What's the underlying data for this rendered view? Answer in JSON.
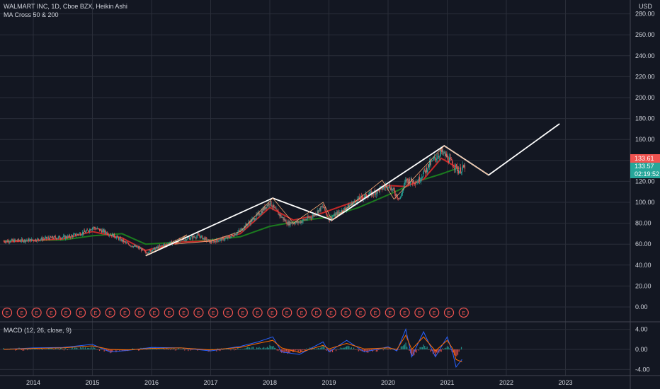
{
  "header": {
    "title": "WALMART INC, 1D, Cboe BZX, Heikin Ashi",
    "indicator": "MA Cross 50 & 200",
    "currency": "USD",
    "macd_label": "MACD (12, 26, close, 9)"
  },
  "price_tags": {
    "last": "133.61",
    "close": "133.57",
    "countdown": "02:19:52"
  },
  "earnings_marker": "E",
  "colors": {
    "background": "#131722",
    "grid": "#2a2e39",
    "up": "#26a69a",
    "down": "#ef5350",
    "ma50": "#c62828",
    "ma200": "#1b7a1f",
    "projection": "#ffffff",
    "projection_thin": "#f0a875",
    "macd": "#2962ff",
    "signal": "#ff6d00"
  },
  "chart_data": [
    {
      "type": "line",
      "title": "WALMART INC, 1D, Cboe BZX, Heikin Ashi",
      "x_ticks": [
        "2014",
        "2015",
        "2016",
        "2017",
        "2018",
        "2019",
        "2020",
        "2021",
        "2022",
        "2023"
      ],
      "y_ticks": [
        "0.00",
        "20.00",
        "40.00",
        "60.00",
        "80.00",
        "100.00",
        "120.00",
        "140.00",
        "160.00",
        "180.00",
        "200.00",
        "220.00",
        "240.00",
        "260.00",
        "280.00"
      ],
      "ylim": [
        -10,
        295
      ],
      "series": [
        {
          "name": "Price",
          "x": [
            2013.5,
            2014.0,
            2014.3,
            2014.6,
            2014.9,
            2015.0,
            2015.2,
            2015.4,
            2015.6,
            2015.8,
            2015.9,
            2016.2,
            2016.5,
            2016.8,
            2017.0,
            2017.3,
            2017.5,
            2017.8,
            2018.0,
            2018.1,
            2018.3,
            2018.5,
            2018.7,
            2018.9,
            2019.0,
            2019.3,
            2019.5,
            2019.8,
            2020.0,
            2020.2,
            2020.3,
            2020.5,
            2020.7,
            2020.9,
            2021.0,
            2021.1,
            2021.2,
            2021.3
          ],
          "values": [
            63,
            64,
            66,
            67,
            72,
            76,
            72,
            67,
            60,
            56,
            52,
            59,
            64,
            68,
            62,
            66,
            73,
            88,
            100,
            92,
            80,
            81,
            86,
            96,
            84,
            95,
            103,
            110,
            117,
            103,
            121,
            120,
            136,
            148,
            143,
            136,
            130,
            134
          ]
        },
        {
          "name": "MA 50",
          "x": [
            2013.5,
            2014.5,
            2015.0,
            2015.5,
            2015.9,
            2016.5,
            2017.0,
            2017.5,
            2018.0,
            2018.4,
            2018.8,
            2019.0,
            2019.5,
            2020.0,
            2020.3,
            2020.6,
            2020.9,
            2021.2
          ],
          "values": [
            62,
            65,
            72,
            66,
            54,
            62,
            63,
            70,
            95,
            83,
            88,
            92,
            102,
            116,
            115,
            122,
            142,
            132
          ]
        },
        {
          "name": "MA 200",
          "x": [
            2013.5,
            2014.5,
            2015.0,
            2015.5,
            2015.9,
            2016.5,
            2017.0,
            2017.5,
            2018.0,
            2018.5,
            2019.0,
            2019.5,
            2020.0,
            2020.5,
            2020.9,
            2021.2
          ],
          "values": [
            63,
            64,
            68,
            70,
            60,
            62,
            64,
            67,
            77,
            82,
            86,
            95,
            107,
            120,
            127,
            133
          ]
        },
        {
          "name": "Projection",
          "x": [
            2015.9,
            2018.05,
            2019.05,
            2020.95,
            2021.7,
            2022.9
          ],
          "values": [
            49,
            104,
            83,
            154,
            126,
            175
          ]
        }
      ]
    },
    {
      "type": "line",
      "title": "MACD (12, 26, close, 9)",
      "y_ticks": [
        "4.00",
        "0.00",
        "-4.00"
      ],
      "ylim": [
        -5,
        5
      ],
      "series": [
        {
          "name": "MACD",
          "x": [
            2013.5,
            2014.0,
            2014.5,
            2015.0,
            2015.3,
            2015.6,
            2016.0,
            2016.5,
            2017.0,
            2017.5,
            2017.8,
            2018.05,
            2018.2,
            2018.5,
            2018.9,
            2019.0,
            2019.3,
            2019.6,
            2020.0,
            2020.15,
            2020.3,
            2020.4,
            2020.6,
            2020.8,
            2021.0,
            2021.1,
            2021.15,
            2021.25
          ],
          "values": [
            0,
            0.3,
            0.4,
            1.0,
            -0.5,
            -0.2,
            0.4,
            0.3,
            -0.3,
            0.6,
            1.5,
            2.5,
            -0.5,
            -1.0,
            1.5,
            -0.5,
            1.8,
            -0.5,
            0.5,
            -0.3,
            4.0,
            -1.5,
            3.5,
            -1.5,
            2.5,
            -1.0,
            -3.5,
            -2.0
          ]
        },
        {
          "name": "Signal",
          "x": [
            2013.5,
            2014.0,
            2014.5,
            2015.0,
            2015.3,
            2015.6,
            2016.0,
            2016.5,
            2017.0,
            2017.5,
            2017.8,
            2018.05,
            2018.2,
            2018.5,
            2018.9,
            2019.0,
            2019.3,
            2019.6,
            2020.0,
            2020.15,
            2020.3,
            2020.4,
            2020.6,
            2020.8,
            2021.0,
            2021.1,
            2021.15,
            2021.25
          ],
          "values": [
            0,
            0.2,
            0.3,
            0.7,
            0,
            -0.1,
            0.2,
            0.3,
            -0.1,
            0.4,
            1.2,
            1.8,
            0.3,
            -0.6,
            0.8,
            0.1,
            1.2,
            0.1,
            0.3,
            0,
            2.8,
            0,
            2.5,
            -0.3,
            1.8,
            0,
            -2.0,
            -2.5
          ]
        }
      ]
    }
  ]
}
